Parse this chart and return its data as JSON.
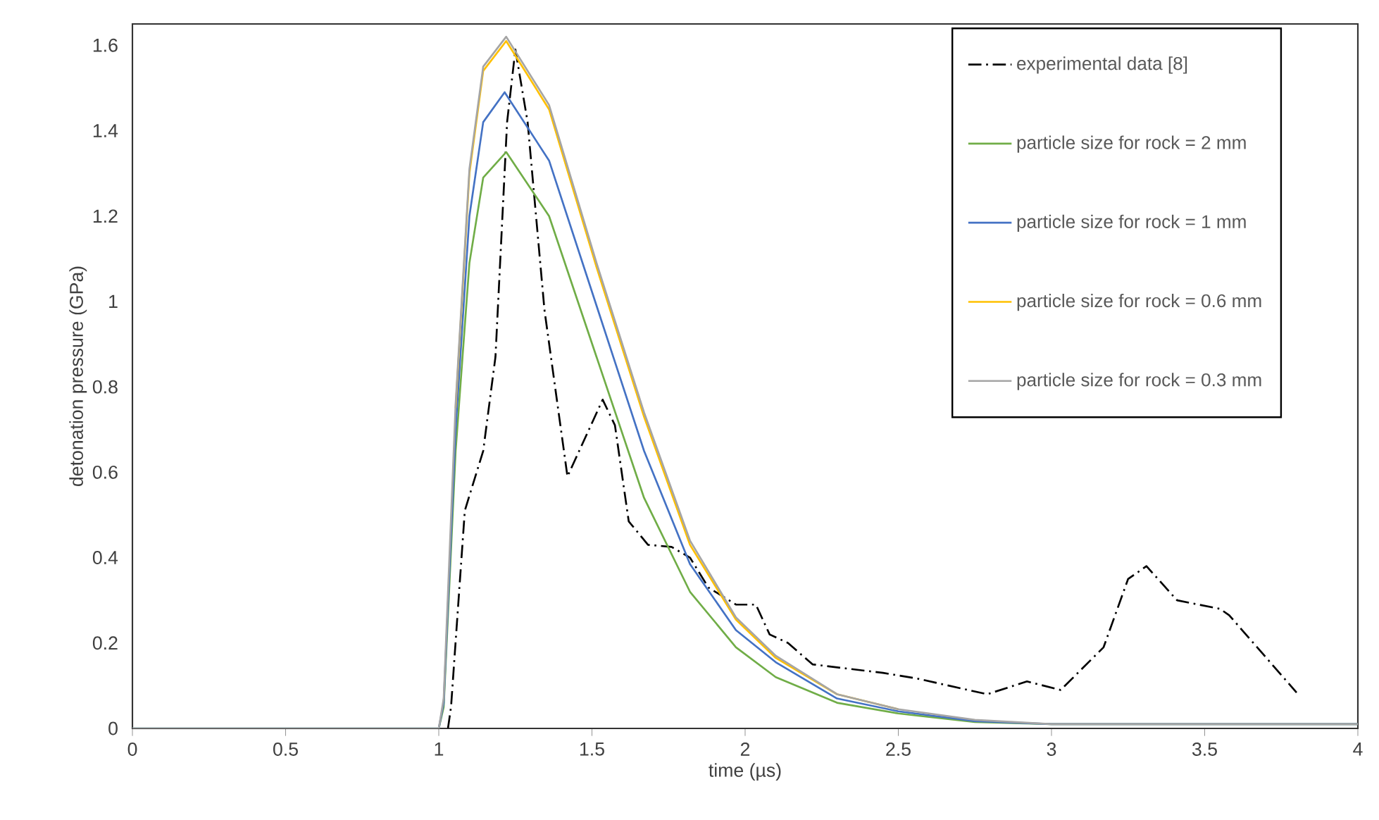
{
  "chart_data": {
    "type": "line",
    "xlabel": "time (µs)",
    "ylabel": "detonation pressure (GPa)",
    "xlim": [
      0,
      4
    ],
    "ylim": [
      0,
      1.65
    ],
    "xticks": [
      0,
      0.5,
      1,
      1.5,
      2,
      2.5,
      3,
      3.5,
      4
    ],
    "yticks": [
      0,
      0.2,
      0.4,
      0.6,
      0.8,
      1,
      1.2,
      1.4,
      1.6
    ],
    "grid": false,
    "legend": "top right",
    "marker": "none",
    "series": [
      {
        "name": "experimental data [8]",
        "color": "#000000",
        "line_style": "dashdot",
        "x": [
          1.03,
          1.04,
          1.085,
          1.145,
          1.185,
          1.223,
          1.25,
          1.29,
          1.345,
          1.42,
          1.535,
          1.575,
          1.62,
          1.683,
          1.76,
          1.82,
          1.88,
          1.97,
          2.035,
          2.08,
          2.14,
          2.22,
          2.45,
          2.56,
          2.79,
          2.92,
          3.03,
          3.17,
          3.25,
          3.31,
          3.41,
          3.55,
          3.58,
          3.8
        ],
        "values": [
          0,
          0.05,
          0.51,
          0.65,
          0.87,
          1.42,
          1.59,
          1.42,
          0.98,
          0.59,
          0.77,
          0.71,
          0.485,
          0.43,
          0.425,
          0.4,
          0.33,
          0.29,
          0.29,
          0.22,
          0.2,
          0.15,
          0.13,
          0.117,
          0.08,
          0.11,
          0.09,
          0.19,
          0.35,
          0.38,
          0.3,
          0.28,
          0.265,
          0.084
        ]
      },
      {
        "name": "particle size for rock = 2 mm",
        "color": "#70ad47",
        "line_style": "solid",
        "x": [
          0,
          1,
          1.016,
          1.055,
          1.1,
          1.145,
          1.22,
          1.36,
          1.515,
          1.67,
          1.82,
          1.97,
          2.1,
          2.3,
          2.5,
          2.75,
          3,
          4
        ],
        "values": [
          0,
          0,
          0.05,
          0.65,
          1.09,
          1.29,
          1.35,
          1.2,
          0.87,
          0.54,
          0.32,
          0.19,
          0.12,
          0.06,
          0.035,
          0.015,
          0.01,
          0.01
        ]
      },
      {
        "name": "particle size for rock = 1 mm",
        "color": "#4472c4",
        "line_style": "solid",
        "x": [
          0,
          1,
          1.016,
          1.055,
          1.1,
          1.145,
          1.215,
          1.36,
          1.515,
          1.67,
          1.82,
          1.97,
          2.1,
          2.3,
          2.5,
          2.75,
          3,
          4
        ],
        "values": [
          0,
          0,
          0.06,
          0.7,
          1.2,
          1.42,
          1.49,
          1.33,
          0.99,
          0.65,
          0.385,
          0.23,
          0.155,
          0.07,
          0.04,
          0.017,
          0.01,
          0.01
        ]
      },
      {
        "name": "particle size for rock = 0.6 mm",
        "color": "#ffc000",
        "line_style": "solid",
        "x": [
          1.055,
          1.1,
          1.145,
          1.22,
          1.36,
          1.515,
          1.67,
          1.82,
          1.97,
          2.1,
          2.3,
          2.5
        ],
        "values": [
          0.75,
          1.3,
          1.54,
          1.61,
          1.45,
          1.08,
          0.73,
          0.43,
          0.255,
          0.165,
          0.08,
          0.045
        ]
      },
      {
        "name": "particle size for rock = 0.3 mm",
        "color": "#a5a5a5",
        "line_style": "solid",
        "x": [
          0,
          1,
          1.016,
          1.055,
          1.1,
          1.145,
          1.22,
          1.36,
          1.515,
          1.67,
          1.82,
          1.97,
          2.1,
          2.3,
          2.5,
          2.75,
          3,
          4
        ],
        "values": [
          0,
          0,
          0.07,
          0.76,
          1.31,
          1.55,
          1.62,
          1.46,
          1.09,
          0.74,
          0.44,
          0.26,
          0.17,
          0.08,
          0.045,
          0.02,
          0.01,
          0.01
        ]
      }
    ]
  }
}
